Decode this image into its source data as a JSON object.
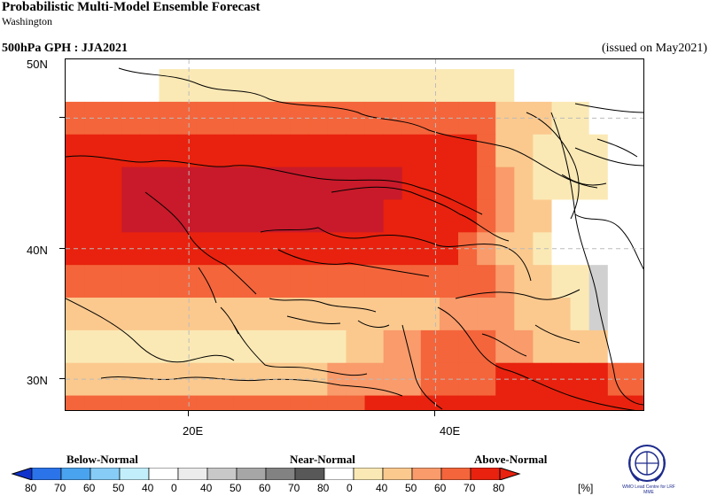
{
  "header": {
    "title": "Probabilistic Multi-Model Ensemble Forecast",
    "subtitle": "Washington",
    "variable": "500hPa GPH : JJA2021",
    "issued": "(issued on May2021)"
  },
  "map": {
    "lat_labels": [
      "50N",
      "40N",
      "30N"
    ],
    "lon_labels": [
      "20E",
      "40E"
    ],
    "extent": {
      "lon": [
        10,
        57
      ],
      "lat": [
        27.5,
        54.5
      ]
    },
    "grid_lines": {
      "lon": [
        20,
        40
      ],
      "lat": [
        50,
        40,
        30
      ]
    },
    "cells_lon_step": 2.5,
    "cells_lat_step": 2.5,
    "forecast_rows": [
      {
        "lat": 52.5,
        "cells": "0000044444444444444444440000000"
      },
      {
        "lat": 50.0,
        "cells": "7777777777777777777777755544000"
      },
      {
        "lat": 47.5,
        "cells": "8888888888888888888888755444400"
      },
      {
        "lat": 45.0,
        "cells": "8889999999999999998888765444400"
      },
      {
        "lat": 42.5,
        "cells": "8889999999999999988888765500000"
      },
      {
        "lat": 40.0,
        "cells": "8888888888888888888887655400000"
      },
      {
        "lat": 37.5,
        "cells": "7777777777777777777777765544300"
      },
      {
        "lat": 35.0,
        "cells": "5555555555555555555566665554300"
      },
      {
        "lat": 32.5,
        "cells": "4444444444444445566777766555500"
      },
      {
        "lat": 30.0,
        "cells": "5555555555555566666777788888877"
      },
      {
        "lat": 27.5,
        "cells": "7777777777777777888888888888888"
      }
    ],
    "palette": {
      "0": "#ffffff",
      "3": "#d0d0d0",
      "4": "#fbe9b5",
      "5": "#fbc98e",
      "6": "#f99b6b",
      "7": "#f4653b",
      "8": "#e8220e",
      "9": "#c81a2a"
    }
  },
  "legend": {
    "categories": [
      "Below-Normal",
      "Near-Normal",
      "Above-Normal"
    ],
    "tick_labels": [
      "80",
      "70",
      "60",
      "50",
      "40",
      "0",
      "40",
      "50",
      "60",
      "70",
      "80",
      "0",
      "40",
      "50",
      "60",
      "70",
      "80"
    ],
    "unit": "[%]",
    "colors": [
      "#1133cc",
      "#2b73e8",
      "#4aa3ee",
      "#86ccf6",
      "#c2eefc",
      "#ffffff",
      "#ececec",
      "#c8c8c8",
      "#a6a6a6",
      "#828282",
      "#585858",
      "#ffffff",
      "#fbe9b5",
      "#fbc98e",
      "#f99b6b",
      "#f4653b",
      "#e8220e"
    ]
  },
  "logo": {
    "text": "WMO Lead Centre for LRF MME"
  }
}
